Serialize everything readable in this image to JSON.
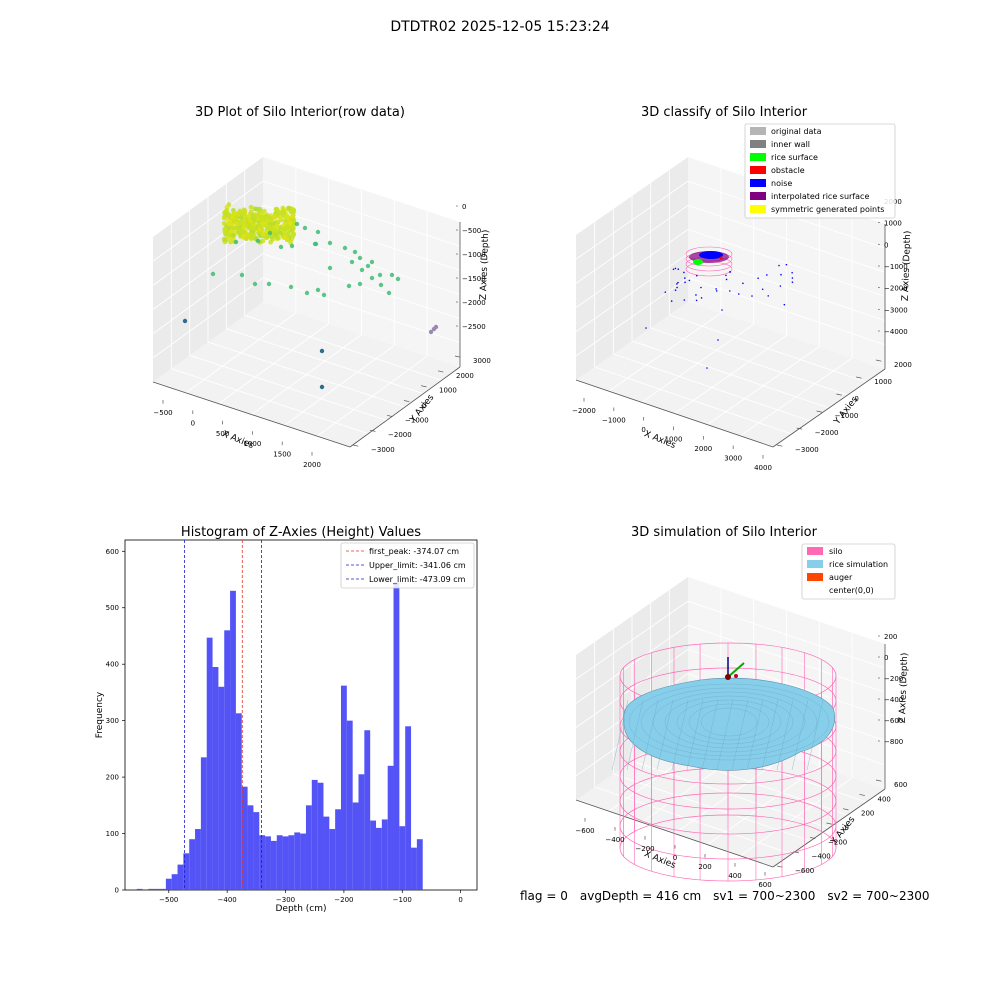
{
  "figure": {
    "title": "DTDTR02 2025-12-05 15:23:24",
    "footer": {
      "flag": "flag = 0",
      "avg_depth": "avgDepth = 416 cm",
      "sv1": "sv1 = 700~2300",
      "sv2": "sv2 = 700~2300"
    }
  },
  "colors": {
    "hist_bar": "#4a4af5",
    "first_peak": "#e0362a",
    "limit_line": "#1c1ccf",
    "original_data": "#b5b5b5",
    "inner_wall": "#808080",
    "rice_surface": "#00ff00",
    "obstacle": "#ff0000",
    "noise": "#0000ff",
    "interpolated": "#800080",
    "symmetric": "#ffff00",
    "silo": "#ff69b4",
    "rice_sim": "#87ceeb",
    "auger": "#ff4500"
  },
  "chart_data": [
    {
      "type": "scatter",
      "title": "3D Plot of Silo Interior(row data)",
      "xlabel": "X Axies",
      "ylabel": "Y Axies",
      "zlabel": "Z Axies (Depth)",
      "x_ticks": [
        "−500",
        "0",
        "500",
        "1000",
        "1500",
        "2000"
      ],
      "y_ticks": [
        "−3000",
        "−2000",
        "−1000",
        "0",
        "1000",
        "2000",
        "3000"
      ],
      "z_ticks": [
        "0",
        "−500",
        "−1000",
        "−1500",
        "−2000",
        "−2500"
      ],
      "colormap": "viridis by depth"
    },
    {
      "type": "scatter",
      "title": "3D classify of Silo Interior",
      "xlabel": "X Axies",
      "ylabel": "Y Axies",
      "zlabel": "Z Axies (Depth)",
      "x_ticks": [
        "−2000",
        "−1000",
        "0",
        "1000",
        "2000",
        "3000",
        "4000"
      ],
      "y_ticks": [
        "−3000",
        "−2000",
        "−1000",
        "0",
        "1000",
        "2000"
      ],
      "z_ticks": [
        "2000",
        "1000",
        "0",
        "−1000",
        "−2000",
        "−3000",
        "−4000"
      ],
      "legend_position": "top-right",
      "legend": [
        {
          "label": "original data",
          "color": "#b5b5b5"
        },
        {
          "label": "inner wall",
          "color": "#808080"
        },
        {
          "label": "rice surface",
          "color": "#00ff00"
        },
        {
          "label": "obstacle",
          "color": "#ff0000"
        },
        {
          "label": "noise",
          "color": "#0000ff"
        },
        {
          "label": "interpolated rice surface",
          "color": "#800080"
        },
        {
          "label": "symmetric generated points",
          "color": "#ffff00"
        }
      ]
    },
    {
      "type": "bar",
      "title": "Histogram of Z-Axies (Height) Values",
      "xlabel": "Depth (cm)",
      "ylabel": "Frequency",
      "xlim": [
        -575,
        28
      ],
      "ylim": [
        0,
        620
      ],
      "x_ticks": [
        -500,
        -400,
        -300,
        -200,
        -100,
        0
      ],
      "y_ticks": [
        0,
        100,
        200,
        300,
        400,
        500,
        600
      ],
      "bin_width": 10,
      "bins": [
        {
          "x0": -555,
          "v": 2
        },
        {
          "x0": -545,
          "v": 0
        },
        {
          "x0": -535,
          "v": 2
        },
        {
          "x0": -525,
          "v": 2
        },
        {
          "x0": -515,
          "v": 2
        },
        {
          "x0": -505,
          "v": 20
        },
        {
          "x0": -495,
          "v": 28
        },
        {
          "x0": -485,
          "v": 45
        },
        {
          "x0": -475,
          "v": 65
        },
        {
          "x0": -465,
          "v": 90
        },
        {
          "x0": -455,
          "v": 108
        },
        {
          "x0": -445,
          "v": 235
        },
        {
          "x0": -435,
          "v": 447
        },
        {
          "x0": -425,
          "v": 395
        },
        {
          "x0": -415,
          "v": 360
        },
        {
          "x0": -405,
          "v": 460
        },
        {
          "x0": -395,
          "v": 530
        },
        {
          "x0": -385,
          "v": 313
        },
        {
          "x0": -375,
          "v": 183
        },
        {
          "x0": -365,
          "v": 150
        },
        {
          "x0": -355,
          "v": 138
        },
        {
          "x0": -345,
          "v": 97
        },
        {
          "x0": -335,
          "v": 95
        },
        {
          "x0": -325,
          "v": 87
        },
        {
          "x0": -315,
          "v": 97
        },
        {
          "x0": -305,
          "v": 95
        },
        {
          "x0": -295,
          "v": 97
        },
        {
          "x0": -285,
          "v": 102
        },
        {
          "x0": -275,
          "v": 100
        },
        {
          "x0": -265,
          "v": 150
        },
        {
          "x0": -255,
          "v": 195
        },
        {
          "x0": -245,
          "v": 190
        },
        {
          "x0": -235,
          "v": 130
        },
        {
          "x0": -225,
          "v": 108
        },
        {
          "x0": -215,
          "v": 143
        },
        {
          "x0": -205,
          "v": 362
        },
        {
          "x0": -195,
          "v": 300
        },
        {
          "x0": -185,
          "v": 155
        },
        {
          "x0": -175,
          "v": 205
        },
        {
          "x0": -165,
          "v": 283
        },
        {
          "x0": -155,
          "v": 123
        },
        {
          "x0": -145,
          "v": 110
        },
        {
          "x0": -135,
          "v": 125
        },
        {
          "x0": -125,
          "v": 220
        },
        {
          "x0": -115,
          "v": 545
        },
        {
          "x0": -105,
          "v": 113
        },
        {
          "x0": -95,
          "v": 290
        },
        {
          "x0": -85,
          "v": 75
        },
        {
          "x0": -75,
          "v": 90
        }
      ],
      "vlines": [
        {
          "label": "first_peak: -374.07 cm",
          "x": -374.07,
          "color": "#e0362a"
        },
        {
          "label": "Upper_limit: -341.06 cm",
          "x": -341.06,
          "color": "#1c1ccf"
        },
        {
          "label": "Lower_limit: -473.09 cm",
          "x": -473.09,
          "color": "#1c1ccf"
        }
      ],
      "legend_position": "top-right"
    },
    {
      "type": "scatter",
      "title": "3D simulation of Silo Interior",
      "xlabel": "X Axies",
      "ylabel": "Y Axies",
      "zlabel": "Z Axies (Depth)",
      "x_ticks": [
        "−600",
        "−400",
        "−200",
        "0",
        "200",
        "400",
        "600"
      ],
      "y_ticks": [
        "−600",
        "−400",
        "−200",
        "0",
        "200",
        "400",
        "600"
      ],
      "z_ticks": [
        "200",
        "0",
        "−200",
        "−400",
        "−600",
        "−800"
      ],
      "legend_position": "top-right",
      "legend": [
        {
          "label": "silo",
          "color": "#ff69b4"
        },
        {
          "label": "rice simulation",
          "color": "#87ceeb"
        },
        {
          "label": "auger",
          "color": "#ff4500"
        },
        {
          "label": "center(0,0)",
          "color": ""
        }
      ]
    }
  ]
}
